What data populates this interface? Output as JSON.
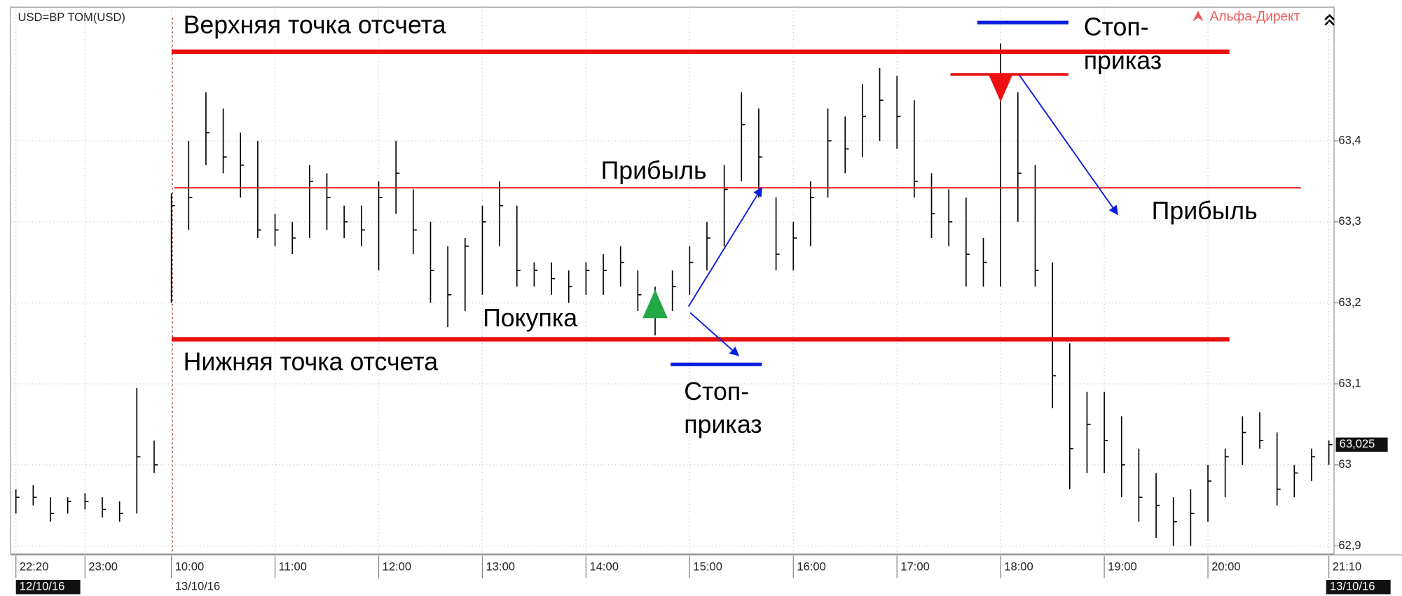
{
  "chart_data": {
    "type": "ohlc",
    "source_label": "USD=BP TOM(USD)",
    "brand": "Альфа-Директ",
    "color": "#000000",
    "high": [
      62.97,
      62.975,
      62.96,
      62.96,
      62.965,
      62.96,
      62.955,
      63.095,
      63.03,
      63.335,
      63.4,
      63.46,
      63.44,
      63.41,
      63.4,
      63.31,
      63.3,
      63.37,
      63.36,
      63.32,
      63.32,
      63.35,
      63.4,
      63.34,
      63.3,
      63.27,
      63.28,
      63.32,
      63.35,
      63.32,
      63.25,
      63.25,
      63.24,
      63.25,
      63.26,
      63.27,
      63.24,
      63.22,
      63.24,
      63.27,
      63.3,
      63.37,
      63.46,
      63.44,
      63.33,
      63.3,
      63.35,
      63.44,
      63.43,
      63.47,
      63.49,
      63.48,
      63.45,
      63.36,
      63.34,
      63.33,
      63.28,
      63.52,
      63.46,
      63.37,
      63.25,
      63.15,
      63.09,
      63.09,
      63.06,
      63.02,
      62.99,
      62.96,
      62.97,
      63.0,
      63.02,
      63.06,
      63.065,
      63.04,
      63.0,
      63.02,
      63.03
    ],
    "low": [
      62.94,
      62.95,
      62.93,
      62.94,
      62.945,
      62.935,
      62.93,
      62.94,
      62.99,
      63.2,
      63.29,
      63.37,
      63.36,
      63.33,
      63.28,
      63.27,
      63.26,
      63.28,
      63.29,
      63.28,
      63.27,
      63.24,
      63.31,
      63.26,
      63.2,
      63.17,
      63.19,
      63.21,
      63.27,
      63.22,
      63.22,
      63.21,
      63.2,
      63.21,
      63.21,
      63.22,
      63.19,
      63.16,
      63.19,
      63.21,
      63.24,
      63.27,
      63.35,
      63.33,
      63.24,
      63.24,
      63.27,
      63.33,
      63.36,
      63.38,
      63.4,
      63.39,
      63.33,
      63.28,
      63.27,
      63.22,
      63.22,
      63.22,
      63.3,
      63.22,
      63.07,
      62.97,
      62.99,
      62.99,
      62.96,
      62.93,
      62.91,
      62.9,
      62.9,
      62.93,
      62.96,
      63.0,
      63.02,
      62.95,
      62.96,
      62.98,
      63.0
    ],
    "close": [
      62.96,
      62.96,
      62.94,
      62.955,
      62.955,
      62.945,
      62.94,
      63.01,
      63.0,
      63.32,
      63.33,
      63.41,
      63.38,
      63.37,
      63.29,
      63.29,
      63.28,
      63.35,
      63.33,
      63.3,
      63.29,
      63.33,
      63.36,
      63.29,
      63.24,
      63.21,
      63.27,
      63.3,
      63.32,
      63.24,
      63.24,
      63.23,
      63.22,
      63.24,
      63.24,
      63.25,
      63.21,
      63.19,
      63.22,
      63.25,
      63.28,
      63.34,
      63.42,
      63.38,
      63.26,
      63.28,
      63.33,
      63.4,
      63.39,
      63.43,
      63.45,
      63.43,
      63.35,
      63.31,
      63.3,
      63.26,
      63.25,
      63.46,
      63.36,
      63.24,
      63.11,
      63.02,
      63.05,
      63.03,
      63.0,
      62.96,
      62.95,
      62.93,
      62.94,
      62.98,
      63.01,
      63.04,
      63.03,
      62.97,
      62.99,
      63.01,
      63.025
    ],
    "xlim": [
      -0.3,
      76.3
    ],
    "xticks": [
      {
        "value": 0,
        "label": "22:20"
      },
      {
        "value": 4,
        "label": "23:00"
      },
      {
        "value": 9,
        "label": "10:00"
      },
      {
        "value": 15,
        "label": "11:00"
      },
      {
        "value": 21,
        "label": "12:00"
      },
      {
        "value": 27,
        "label": "13:00"
      },
      {
        "value": 33,
        "label": "14:00"
      },
      {
        "value": 39,
        "label": "15:00"
      },
      {
        "value": 45,
        "label": "16:00"
      },
      {
        "value": 51,
        "label": "17:00"
      },
      {
        "value": 57,
        "label": "18:00"
      },
      {
        "value": 63,
        "label": "19:00"
      },
      {
        "value": 69,
        "label": "20:00"
      },
      {
        "value": 76,
        "label": "21:10"
      }
    ],
    "dates": [
      {
        "value": 0,
        "label": "12/10/16"
      },
      {
        "value": 9,
        "label": "13/10/16"
      },
      {
        "value": 76,
        "label": "13/10/16"
      }
    ],
    "ylim": [
      62.89,
      63.565
    ],
    "yticks": [
      {
        "value": 62.9,
        "label": "62,9"
      },
      {
        "value": 63,
        "label": "63"
      },
      {
        "value": 63.1,
        "label": "63,1"
      },
      {
        "value": 63.2,
        "label": "63,2"
      },
      {
        "value": 63.3,
        "label": "63,3"
      },
      {
        "value": 63.4,
        "label": "63,4"
      }
    ],
    "grid": true,
    "last_price": {
      "value": 63.025,
      "label": "63,025"
    },
    "levels": [
      {
        "value": 63.51,
        "color": "#e81010"
      },
      {
        "value": 63.155,
        "color": "#e81010"
      },
      {
        "value": 63.342,
        "color": "#e81010"
      },
      {
        "value": 63.482,
        "color": "#e81010"
      },
      {
        "value": 63.546,
        "color": "#0a1ee0"
      },
      {
        "value": 63.124,
        "color": "#0a1ee0"
      }
    ],
    "signals": [
      {
        "x": 37,
        "value": 63.19,
        "color": "#22a845"
      },
      {
        "x": 57,
        "value": 63.47,
        "color": "#ee1111"
      }
    ],
    "annotations": [
      "Верхняя точка отсчета",
      "Нижняя точка отсчета",
      "Прибыль",
      "Прибыль",
      "Покупка",
      "Стоп-",
      "приказ",
      "Стоп-",
      "приказ"
    ]
  }
}
